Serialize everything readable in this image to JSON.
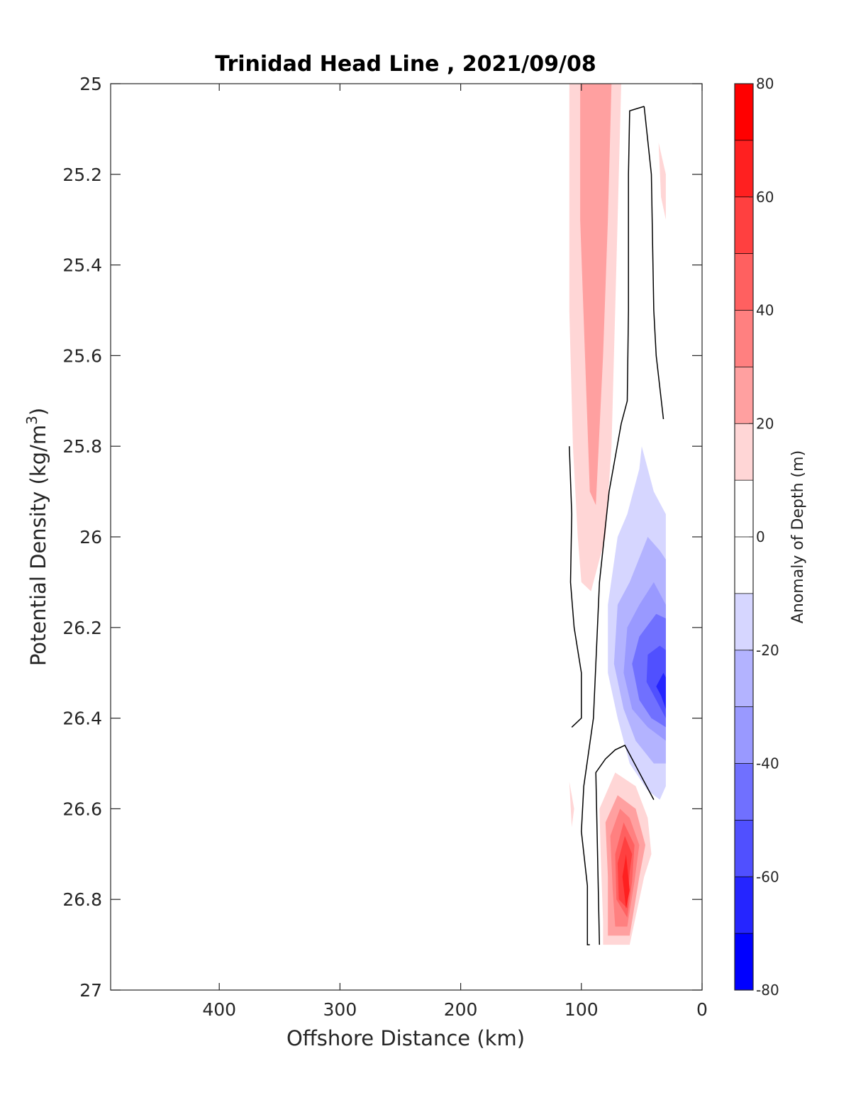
{
  "chart_data": {
    "type": "heatmap",
    "title": "Trinidad Head Line , 2021/09/08",
    "xlabel": "Offshore Distance (km)",
    "ylabel": "Potential Density (kg/m",
    "ylabel_sup": "3",
    "ylabel_close": ")",
    "xlim": [
      490,
      0
    ],
    "ylim": [
      25,
      27
    ],
    "x_reversed": true,
    "y_reversed": true,
    "xticks": [
      400,
      300,
      200,
      100,
      0
    ],
    "xtick_labels": [
      "400",
      "300",
      "200",
      "100",
      "0"
    ],
    "yticks": [
      25,
      25.2,
      25.4,
      25.6,
      25.8,
      26,
      26.2,
      26.4,
      26.6,
      26.8,
      27
    ],
    "ytick_labels": [
      "25",
      "25.2",
      "25.4",
      "25.6",
      "25.8",
      "26",
      "26.2",
      "26.4",
      "26.6",
      "26.8",
      "27"
    ],
    "colorbar": {
      "label": "Anomaly of Depth (m)",
      "range": [
        -80,
        80
      ],
      "ticks": [
        80,
        60,
        40,
        20,
        0,
        -20,
        -40,
        -60,
        -80
      ],
      "tick_labels": [
        "80",
        "60",
        "40",
        "20",
        "0",
        "-20",
        "-40",
        "-60",
        "-80"
      ],
      "levels": [
        {
          "min": 70,
          "max": 80,
          "color": "#ff0000"
        },
        {
          "min": 60,
          "max": 70,
          "color": "#ff2020"
        },
        {
          "min": 50,
          "max": 60,
          "color": "#ff4040"
        },
        {
          "min": 40,
          "max": 50,
          "color": "#ff6060"
        },
        {
          "min": 30,
          "max": 40,
          "color": "#ff8080"
        },
        {
          "min": 20,
          "max": 30,
          "color": "#ffa0a0"
        },
        {
          "min": 10,
          "max": 20,
          "color": "#ffd6d6"
        },
        {
          "min": 0,
          "max": 10,
          "color": "#ffffff"
        },
        {
          "min": -10,
          "max": 0,
          "color": "#ffffff"
        },
        {
          "min": -20,
          "max": -10,
          "color": "#d6d6ff"
        },
        {
          "min": -30,
          "max": -20,
          "color": "#b3b3ff"
        },
        {
          "min": -40,
          "max": -30,
          "color": "#9999ff"
        },
        {
          "min": -50,
          "max": -40,
          "color": "#7070ff"
        },
        {
          "min": -60,
          "max": -50,
          "color": "#5050ff"
        },
        {
          "min": -70,
          "max": -60,
          "color": "#2525ff"
        },
        {
          "min": -80,
          "max": -70,
          "color": "#0000ff"
        }
      ]
    },
    "filled_regions": [
      {
        "name": "positive-anomaly-upper",
        "level": 10,
        "color": "#ffd6d6",
        "points": [
          [
            110,
            25.0
          ],
          [
            67,
            25.0
          ],
          [
            70,
            25.3
          ],
          [
            75,
            25.8
          ],
          [
            80,
            26.0
          ],
          [
            92,
            26.12
          ],
          [
            100,
            26.1
          ],
          [
            103,
            26.0
          ],
          [
            107,
            25.8
          ],
          [
            110,
            25.5
          ]
        ]
      },
      {
        "name": "positive-anomaly-upper",
        "level": 20,
        "color": "#ffa0a0",
        "points": [
          [
            101,
            25.0
          ],
          [
            75,
            25.0
          ],
          [
            78,
            25.3
          ],
          [
            82,
            25.6
          ],
          [
            88,
            25.93
          ],
          [
            93,
            25.9
          ],
          [
            97,
            25.6
          ],
          [
            101,
            25.3
          ]
        ]
      },
      {
        "name": "positive-anomaly-nearshore",
        "level": 10,
        "color": "#ffd6d6",
        "points": [
          [
            36,
            25.13
          ],
          [
            30,
            25.2
          ],
          [
            30,
            25.3
          ],
          [
            34,
            25.25
          ]
        ]
      },
      {
        "name": "positive-anomaly-deep",
        "level": 10,
        "color": "#ffd6d6",
        "points": [
          [
            110,
            26.54
          ],
          [
            106,
            26.6
          ],
          [
            108,
            26.64
          ]
        ]
      },
      {
        "name": "positive-anomaly-deep",
        "level": 10,
        "color": "#ffd6d6",
        "points": [
          [
            72,
            26.52
          ],
          [
            85,
            26.6
          ],
          [
            84,
            26.7
          ],
          [
            82,
            26.85
          ],
          [
            82,
            26.9
          ],
          [
            60,
            26.9
          ],
          [
            48,
            26.75
          ],
          [
            42,
            26.7
          ],
          [
            45,
            26.62
          ],
          [
            55,
            26.55
          ]
        ]
      },
      {
        "name": "positive-anomaly-deep",
        "level": 20,
        "color": "#ffa0a0",
        "points": [
          [
            70,
            26.57
          ],
          [
            80,
            26.63
          ],
          [
            78,
            26.75
          ],
          [
            78,
            26.88
          ],
          [
            60,
            26.88
          ],
          [
            52,
            26.75
          ],
          [
            47,
            26.68
          ],
          [
            55,
            26.6
          ]
        ]
      },
      {
        "name": "positive-anomaly-deep",
        "level": 30,
        "color": "#ff8080",
        "points": [
          [
            68,
            26.6
          ],
          [
            76,
            26.66
          ],
          [
            74,
            26.78
          ],
          [
            72,
            26.86
          ],
          [
            62,
            26.86
          ],
          [
            56,
            26.76
          ],
          [
            52,
            26.68
          ],
          [
            60,
            26.62
          ]
        ]
      },
      {
        "name": "positive-anomaly-deep",
        "level": 40,
        "color": "#ff6060",
        "points": [
          [
            65,
            26.63
          ],
          [
            72,
            26.7
          ],
          [
            71,
            26.8
          ],
          [
            62,
            26.84
          ],
          [
            58,
            26.76
          ],
          [
            56,
            26.68
          ]
        ]
      },
      {
        "name": "positive-anomaly-deep",
        "level": 50,
        "color": "#ff4040",
        "points": [
          [
            64,
            26.66
          ],
          [
            70,
            26.72
          ],
          [
            69,
            26.8
          ],
          [
            62,
            26.82
          ],
          [
            60,
            26.74
          ],
          [
            58,
            26.7
          ]
        ]
      },
      {
        "name": "positive-anomaly-deep",
        "level": 60,
        "color": "#ff2020",
        "points": [
          [
            63,
            26.7
          ],
          [
            66,
            26.75
          ],
          [
            63,
            26.82
          ],
          [
            60,
            26.78
          ]
        ]
      },
      {
        "name": "negative-anomaly",
        "level": -10,
        "color": "#d6d6ff",
        "points": [
          [
            50,
            25.8
          ],
          [
            40,
            25.9
          ],
          [
            30,
            25.95
          ],
          [
            30,
            26.55
          ],
          [
            35,
            26.58
          ],
          [
            45,
            26.56
          ],
          [
            60,
            26.5
          ],
          [
            70,
            26.4
          ],
          [
            78,
            26.3
          ],
          [
            78,
            26.15
          ],
          [
            70,
            26.0
          ],
          [
            62,
            25.95
          ],
          [
            52,
            25.85
          ]
        ]
      },
      {
        "name": "negative-anomaly",
        "level": -20,
        "color": "#b3b3ff",
        "points": [
          [
            45,
            26.0
          ],
          [
            35,
            26.03
          ],
          [
            30,
            26.05
          ],
          [
            30,
            26.5
          ],
          [
            40,
            26.5
          ],
          [
            55,
            26.45
          ],
          [
            65,
            26.38
          ],
          [
            73,
            26.28
          ],
          [
            70,
            26.15
          ],
          [
            60,
            26.1
          ]
        ]
      },
      {
        "name": "negative-anomaly",
        "level": -30,
        "color": "#9999ff",
        "points": [
          [
            40,
            26.1
          ],
          [
            30,
            26.15
          ],
          [
            30,
            26.45
          ],
          [
            45,
            26.42
          ],
          [
            58,
            26.38
          ],
          [
            65,
            26.3
          ],
          [
            62,
            26.2
          ],
          [
            52,
            26.15
          ]
        ]
      },
      {
        "name": "negative-anomaly",
        "level": -40,
        "color": "#7070ff",
        "points": [
          [
            38,
            26.17
          ],
          [
            30,
            26.18
          ],
          [
            30,
            26.42
          ],
          [
            42,
            26.4
          ],
          [
            52,
            26.36
          ],
          [
            58,
            26.28
          ],
          [
            52,
            26.22
          ]
        ]
      },
      {
        "name": "negative-anomaly",
        "level": -50,
        "color": "#5050ff",
        "points": [
          [
            35,
            26.24
          ],
          [
            30,
            26.25
          ],
          [
            30,
            26.4
          ],
          [
            38,
            26.36
          ],
          [
            46,
            26.32
          ],
          [
            45,
            26.26
          ]
        ]
      },
      {
        "name": "negative-anomaly",
        "level": -60,
        "color": "#2525ff",
        "points": [
          [
            32,
            26.3
          ],
          [
            30,
            26.31
          ],
          [
            30,
            26.38
          ],
          [
            34,
            26.35
          ],
          [
            38,
            26.33
          ]
        ]
      }
    ],
    "zero_contours": [
      {
        "name": "zero-contour-nearshore",
        "points": [
          [
            48,
            25.05
          ],
          [
            60,
            25.06
          ],
          [
            61,
            25.2
          ],
          [
            61,
            25.5
          ],
          [
            62,
            25.7
          ],
          [
            67,
            25.75
          ],
          [
            77,
            25.9
          ],
          [
            85,
            26.1
          ],
          [
            90,
            26.4
          ],
          [
            98,
            26.55
          ],
          [
            100,
            26.65
          ],
          [
            95,
            26.77
          ],
          [
            95,
            26.9
          ],
          [
            93,
            26.9
          ]
        ]
      },
      {
        "name": "zero-contour-nearshore",
        "points": [
          [
            48,
            25.05
          ],
          [
            42,
            25.2
          ],
          [
            40,
            25.5
          ],
          [
            38,
            25.6
          ],
          [
            32,
            25.74
          ]
        ]
      },
      {
        "name": "zero-contour-offshore",
        "points": [
          [
            110,
            25.8
          ],
          [
            108,
            25.95
          ],
          [
            109,
            26.1
          ],
          [
            106,
            26.2
          ],
          [
            100,
            26.3
          ],
          [
            100,
            26.4
          ],
          [
            108,
            26.42
          ]
        ]
      },
      {
        "name": "zero-contour-deep",
        "points": [
          [
            40,
            26.58
          ],
          [
            52,
            26.52
          ],
          [
            64,
            26.46
          ],
          [
            72,
            26.47
          ],
          [
            80,
            26.49
          ],
          [
            88,
            26.52
          ],
          [
            85,
            26.9
          ]
        ]
      }
    ]
  }
}
